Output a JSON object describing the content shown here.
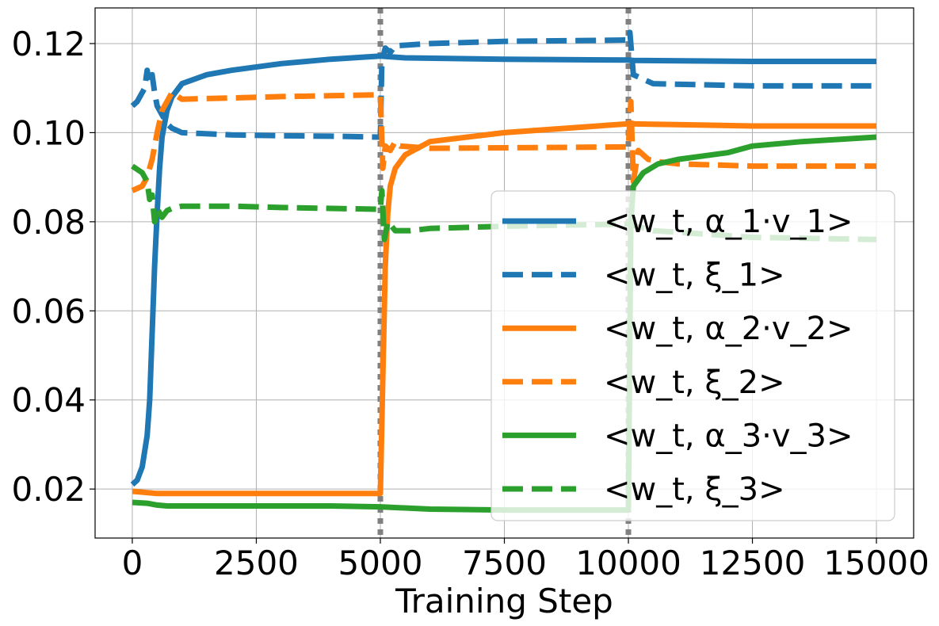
{
  "chart_data": {
    "type": "line",
    "xlabel": "Training Step",
    "ylabel": "",
    "xlim": [
      -750,
      15750
    ],
    "ylim": [
      0.009,
      0.128
    ],
    "x_ticks": [
      0,
      2500,
      5000,
      7500,
      10000,
      12500,
      15000
    ],
    "x_tick_labels": [
      "0",
      "2500",
      "5000",
      "7500",
      "10000",
      "12500",
      "15000"
    ],
    "y_ticks": [
      0.02,
      0.04,
      0.06,
      0.08,
      0.1,
      0.12
    ],
    "y_tick_labels": [
      "0.02",
      "0.04",
      "0.06",
      "0.08",
      "0.10",
      "0.12"
    ],
    "grid": true,
    "legend_position": "lower-right",
    "vlines": [
      5000,
      10000
    ],
    "vline_color": "#808080",
    "series": [
      {
        "name": "<w_t, α_1·v_1>",
        "color": "#1f77b4",
        "dash": "solid",
        "x": [
          0,
          100,
          200,
          300,
          350,
          400,
          450,
          500,
          550,
          600,
          700,
          800,
          1000,
          1500,
          2000,
          3000,
          4000,
          5000,
          5500,
          7500,
          10000,
          10100,
          12500,
          15000
        ],
        "y": [
          0.021,
          0.022,
          0.025,
          0.032,
          0.04,
          0.055,
          0.07,
          0.082,
          0.092,
          0.099,
          0.105,
          0.108,
          0.111,
          0.113,
          0.114,
          0.1155,
          0.1165,
          0.1172,
          0.1168,
          0.1165,
          0.1163,
          0.1162,
          0.116,
          0.116
        ]
      },
      {
        "name": "<w_t, ξ_1>",
        "color": "#1f77b4",
        "dash": "dashed",
        "x": [
          0,
          100,
          200,
          250,
          300,
          350,
          400,
          450,
          500,
          600,
          700,
          800,
          1000,
          2000,
          3000,
          4000,
          5000,
          5030,
          5100,
          5200,
          5300,
          6000,
          7500,
          10000,
          10030,
          10100,
          10200,
          10500,
          12500,
          15000
        ],
        "y": [
          0.106,
          0.107,
          0.109,
          0.11,
          0.114,
          0.111,
          0.113,
          0.109,
          0.106,
          0.104,
          0.102,
          0.101,
          0.1,
          0.0995,
          0.0993,
          0.0992,
          0.099,
          0.116,
          0.119,
          0.118,
          0.1195,
          0.12,
          0.1205,
          0.1208,
          0.1225,
          0.113,
          0.1125,
          0.111,
          0.1105,
          0.1105
        ]
      },
      {
        "name": "<w_t, α_2·v_2>",
        "color": "#ff7f0e",
        "dash": "solid",
        "x": [
          0,
          500,
          1000,
          2000,
          3000,
          4000,
          5000,
          5050,
          5100,
          5150,
          5200,
          5300,
          5500,
          6000,
          7500,
          10000,
          12500,
          15000
        ],
        "y": [
          0.0195,
          0.019,
          0.019,
          0.019,
          0.019,
          0.019,
          0.019,
          0.045,
          0.07,
          0.082,
          0.088,
          0.092,
          0.095,
          0.098,
          0.1,
          0.102,
          0.1015,
          0.1015
        ]
      },
      {
        "name": "<w_t, ξ_2>",
        "color": "#ff7f0e",
        "dash": "dashed",
        "x": [
          0,
          200,
          300,
          400,
          500,
          600,
          700,
          800,
          1000,
          2000,
          3000,
          4000,
          5000,
          5050,
          5100,
          5200,
          5300,
          5400,
          6000,
          7500,
          10000,
          10050,
          10100,
          10200,
          10400,
          10600,
          11000,
          12500,
          15000
        ],
        "y": [
          0.087,
          0.088,
          0.09,
          0.094,
          0.1,
          0.105,
          0.107,
          0.109,
          0.1075,
          0.1078,
          0.1081,
          0.1083,
          0.1085,
          0.092,
          0.097,
          0.096,
          0.098,
          0.097,
          0.0965,
          0.0966,
          0.0968,
          0.107,
          0.089,
          0.096,
          0.094,
          0.0935,
          0.093,
          0.0925,
          0.0925
        ]
      },
      {
        "name": "<w_t, α_3·v_3>",
        "color": "#2ca02c",
        "dash": "solid",
        "x": [
          0,
          300,
          500,
          700,
          1000,
          2000,
          3000,
          4000,
          5000,
          6000,
          7500,
          10000,
          10050,
          10100,
          10300,
          10600,
          11000,
          12000,
          12500,
          13500,
          15000
        ],
        "y": [
          0.017,
          0.0168,
          0.0164,
          0.0162,
          0.0162,
          0.0162,
          0.0162,
          0.0162,
          0.016,
          0.0155,
          0.0153,
          0.0153,
          0.08,
          0.088,
          0.091,
          0.093,
          0.094,
          0.0955,
          0.097,
          0.098,
          0.099
        ]
      },
      {
        "name": "<w_t, ξ_3>",
        "color": "#2ca02c",
        "dash": "dashed",
        "x": [
          0,
          200,
          300,
          350,
          400,
          450,
          500,
          600,
          700,
          800,
          1000,
          2000,
          3000,
          4000,
          5000,
          5030,
          5080,
          5150,
          5300,
          5600,
          6000,
          7500,
          10000,
          10500,
          12500,
          15000
        ],
        "y": [
          0.0925,
          0.091,
          0.089,
          0.085,
          0.086,
          0.08,
          0.083,
          0.081,
          0.0825,
          0.083,
          0.0835,
          0.0835,
          0.0832,
          0.083,
          0.0828,
          0.087,
          0.076,
          0.08,
          0.078,
          0.078,
          0.0785,
          0.079,
          0.0795,
          0.078,
          0.0765,
          0.076
        ]
      }
    ]
  }
}
